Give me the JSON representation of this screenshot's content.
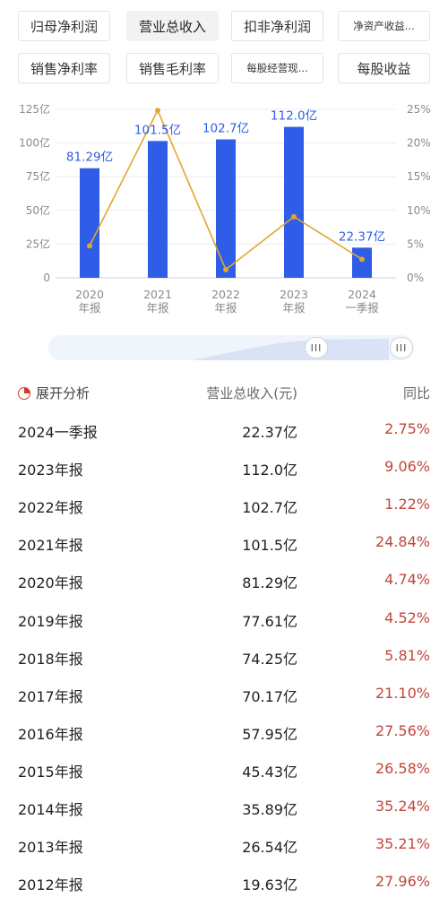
{
  "tabs": [
    {
      "label": "归母净利润",
      "active": false
    },
    {
      "label": "营业总收入",
      "active": true
    },
    {
      "label": "扣非净利润",
      "active": false
    },
    {
      "label": "净资产收益...",
      "active": false
    },
    {
      "label": "销售净利率",
      "active": false
    },
    {
      "label": "销售毛利率",
      "active": false
    },
    {
      "label": "每股经营现...",
      "active": false
    },
    {
      "label": "每股收益",
      "active": false
    }
  ],
  "chart_data": {
    "type": "bar",
    "categories": [
      [
        "2020",
        "年报"
      ],
      [
        "2021",
        "年报"
      ],
      [
        "2022",
        "年报"
      ],
      [
        "2023",
        "年报"
      ],
      [
        "2024",
        "一季报"
      ]
    ],
    "series": [
      {
        "values": [
          81.29,
          101.5,
          102.7,
          112.0,
          22.37
        ],
        "data_labels": [
          "81.29亿",
          "101.5亿",
          "102.7亿",
          "112.0亿",
          "22.37亿"
        ],
        "color": "#2f5de8",
        "axis": "left"
      },
      {
        "type": "line",
        "values": [
          4.74,
          24.84,
          1.22,
          9.06,
          2.75
        ],
        "color": "#e3a62c",
        "axis": "right"
      }
    ],
    "y_left_ticks": [
      "0",
      "25亿",
      "50亿",
      "75亿",
      "100亿",
      "125亿"
    ],
    "y_right_ticks": [
      "0%",
      "5%",
      "10%",
      "15%",
      "20%",
      "25%"
    ],
    "ylim_left": [
      0,
      125
    ],
    "ylim_right": [
      0,
      25
    ],
    "grid": true
  },
  "slider": {
    "handle_glyph": "III"
  },
  "table": {
    "header": {
      "expand_label": "展开分析",
      "col_value": "营业总收入(元)",
      "col_ratio": "同比"
    },
    "rows": [
      {
        "period": "2024一季报",
        "value": "22.37亿",
        "ratio": "2.75%"
      },
      {
        "period": "2023年报",
        "value": "112.0亿",
        "ratio": "9.06%"
      },
      {
        "period": "2022年报",
        "value": "102.7亿",
        "ratio": "1.22%"
      },
      {
        "period": "2021年报",
        "value": "101.5亿",
        "ratio": "24.84%"
      },
      {
        "period": "2020年报",
        "value": "81.29亿",
        "ratio": "4.74%"
      },
      {
        "period": "2019年报",
        "value": "77.61亿",
        "ratio": "4.52%"
      },
      {
        "period": "2018年报",
        "value": "74.25亿",
        "ratio": "5.81%"
      },
      {
        "period": "2017年报",
        "value": "70.17亿",
        "ratio": "21.10%"
      },
      {
        "period": "2016年报",
        "value": "57.95亿",
        "ratio": "27.56%"
      },
      {
        "period": "2015年报",
        "value": "45.43亿",
        "ratio": "26.58%"
      },
      {
        "period": "2014年报",
        "value": "35.89亿",
        "ratio": "35.24%"
      },
      {
        "period": "2013年报",
        "value": "26.54亿",
        "ratio": "35.21%"
      },
      {
        "period": "2012年报",
        "value": "19.63亿",
        "ratio": "27.96%"
      }
    ]
  }
}
